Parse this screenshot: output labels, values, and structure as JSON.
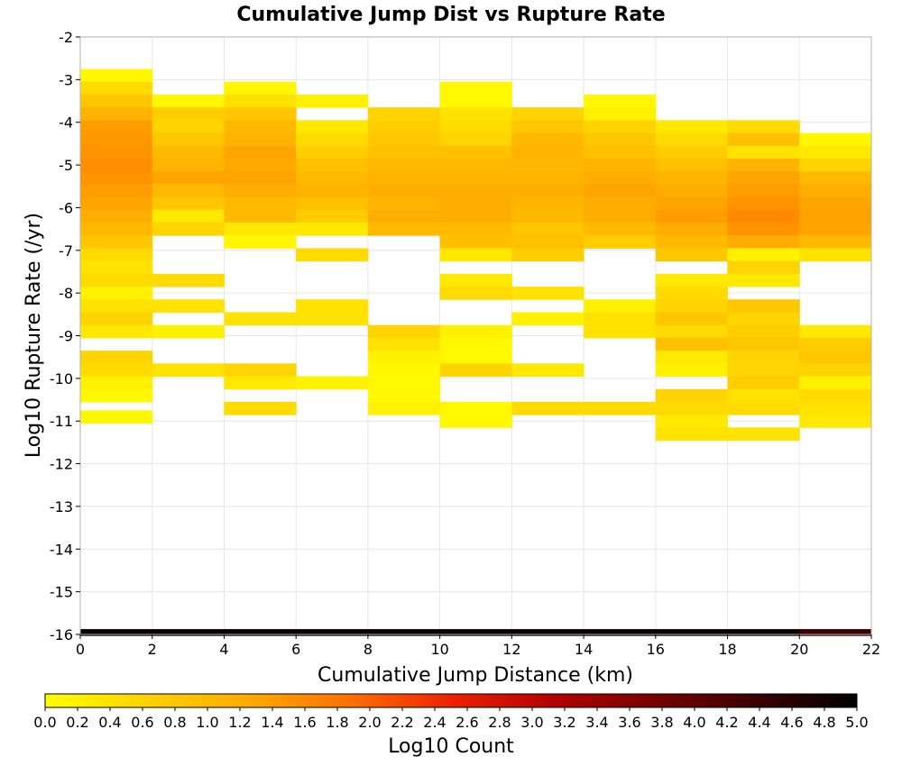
{
  "chart_data": {
    "type": "heatmap",
    "title": "Cumulative Jump Dist vs Rupture Rate",
    "xlabel": "Cumulative Jump Distance (km)",
    "ylabel": "Log10 Rupture Rate (/yr)",
    "xlim": [
      0,
      22
    ],
    "ylim": [
      -16,
      -2
    ],
    "x_ticks": [
      "0",
      "2",
      "4",
      "6",
      "8",
      "10",
      "12",
      "14",
      "16",
      "18",
      "20",
      "22"
    ],
    "y_ticks": [
      "-2",
      "-3",
      "-4",
      "-5",
      "-6",
      "-7",
      "-8",
      "-9",
      "-10",
      "-11",
      "-12",
      "-13",
      "-14",
      "-15",
      "-16"
    ],
    "x_bin_width": 2,
    "y_bin_height": 0.3,
    "grid": true,
    "colorbar": {
      "label": "Log10 Count",
      "min": 0.0,
      "max": 5.0,
      "ticks": [
        "0.0",
        "0.2",
        "0.4",
        "0.6",
        "0.8",
        "1.0",
        "1.2",
        "1.4",
        "1.6",
        "1.8",
        "2.0",
        "2.2",
        "2.4",
        "2.6",
        "2.8",
        "3.0",
        "3.2",
        "3.4",
        "3.6",
        "3.8",
        "4.0",
        "4.2",
        "4.4",
        "4.6",
        "4.8",
        "5.0"
      ],
      "colors": [
        "#ffff00",
        "#ffd200",
        "#ffaa00",
        "#ff7000",
        "#ee2200",
        "#b40000",
        "#780000",
        "#3c0000",
        "#000000"
      ]
    },
    "columns": [
      {
        "x": 0,
        "cells": [
          [
            -2.9,
            0.1
          ],
          [
            -3.2,
            0.5
          ],
          [
            -3.5,
            0.8
          ],
          [
            -3.8,
            1.1
          ],
          [
            -4.1,
            1.4
          ],
          [
            -4.4,
            1.45
          ],
          [
            -4.7,
            1.5
          ],
          [
            -5.0,
            1.55
          ],
          [
            -5.3,
            1.5
          ],
          [
            -5.6,
            1.4
          ],
          [
            -5.9,
            1.3
          ],
          [
            -6.2,
            1.2
          ],
          [
            -6.5,
            1.0
          ],
          [
            -6.8,
            0.8
          ],
          [
            -7.1,
            0.5
          ],
          [
            -7.4,
            0.4
          ],
          [
            -7.7,
            0.5
          ],
          [
            -8.0,
            0.2
          ],
          [
            -8.3,
            0.4
          ],
          [
            -8.6,
            0.6
          ],
          [
            -8.9,
            0.3
          ],
          [
            -9.5,
            0.6
          ],
          [
            -9.8,
            0.5
          ],
          [
            -10.1,
            0.2
          ],
          [
            -10.4,
            0.1
          ],
          [
            -10.9,
            0.1
          ],
          [
            -15.95,
            4.9
          ]
        ]
      },
      {
        "x": 2,
        "cells": [
          [
            -3.5,
            0.1
          ],
          [
            -3.8,
            0.7
          ],
          [
            -4.1,
            0.6
          ],
          [
            -4.4,
            0.8
          ],
          [
            -4.7,
            1.0
          ],
          [
            -5.0,
            1.1
          ],
          [
            -5.3,
            1.3
          ],
          [
            -5.6,
            1.0
          ],
          [
            -5.9,
            0.8
          ],
          [
            -6.2,
            0.3
          ],
          [
            -6.5,
            0.6
          ],
          [
            -7.7,
            0.5
          ],
          [
            -8.3,
            0.4
          ],
          [
            -8.9,
            0.2
          ],
          [
            -9.8,
            0.4
          ],
          [
            -15.95,
            4.9
          ]
        ]
      },
      {
        "x": 4,
        "cells": [
          [
            -3.2,
            0.1
          ],
          [
            -3.5,
            0.4
          ],
          [
            -3.8,
            0.8
          ],
          [
            -4.1,
            1.0
          ],
          [
            -4.4,
            1.1
          ],
          [
            -4.7,
            1.3
          ],
          [
            -5.0,
            1.25
          ],
          [
            -5.3,
            1.3
          ],
          [
            -5.6,
            1.2
          ],
          [
            -5.9,
            1.0
          ],
          [
            -6.2,
            1.0
          ],
          [
            -6.5,
            0.3
          ],
          [
            -6.8,
            0.1
          ],
          [
            -8.6,
            0.4
          ],
          [
            -9.8,
            0.6
          ],
          [
            -10.1,
            0.3
          ],
          [
            -10.7,
            0.5
          ],
          [
            -15.95,
            4.9
          ]
        ]
      },
      {
        "x": 6,
        "cells": [
          [
            -3.5,
            0.2
          ],
          [
            -4.1,
            0.3
          ],
          [
            -4.4,
            0.5
          ],
          [
            -4.7,
            0.7
          ],
          [
            -5.0,
            0.9
          ],
          [
            -5.3,
            1.0
          ],
          [
            -5.6,
            1.1
          ],
          [
            -5.9,
            0.9
          ],
          [
            -6.2,
            0.7
          ],
          [
            -6.5,
            0.3
          ],
          [
            -7.1,
            0.5
          ],
          [
            -8.3,
            0.4
          ],
          [
            -8.6,
            0.4
          ],
          [
            -10.1,
            0.2
          ],
          [
            -15.95,
            4.9
          ]
        ]
      },
      {
        "x": 8,
        "cells": [
          [
            -3.8,
            0.6
          ],
          [
            -4.1,
            0.7
          ],
          [
            -4.4,
            0.8
          ],
          [
            -4.7,
            0.9
          ],
          [
            -5.0,
            1.0
          ],
          [
            -5.3,
            1.1
          ],
          [
            -5.6,
            1.2
          ],
          [
            -5.9,
            1.1
          ],
          [
            -6.2,
            1.2
          ],
          [
            -6.5,
            1.0
          ],
          [
            -8.9,
            0.6
          ],
          [
            -9.2,
            0.4
          ],
          [
            -9.5,
            0.2
          ],
          [
            -9.8,
            0.1
          ],
          [
            -10.1,
            0.1
          ],
          [
            -10.4,
            0.1
          ],
          [
            -10.7,
            0.2
          ],
          [
            -15.95,
            4.9
          ]
        ]
      },
      {
        "x": 10,
        "cells": [
          [
            -3.2,
            0.1
          ],
          [
            -3.5,
            0.1
          ],
          [
            -3.8,
            0.4
          ],
          [
            -4.1,
            0.5
          ],
          [
            -4.4,
            0.6
          ],
          [
            -4.7,
            0.9
          ],
          [
            -5.0,
            1.0
          ],
          [
            -5.3,
            1.1
          ],
          [
            -5.6,
            1.2
          ],
          [
            -5.9,
            1.2
          ],
          [
            -6.2,
            1.2
          ],
          [
            -6.5,
            1.0
          ],
          [
            -6.8,
            0.9
          ],
          [
            -7.1,
            0.3
          ],
          [
            -7.7,
            0.3
          ],
          [
            -8.0,
            0.5
          ],
          [
            -8.9,
            0.2
          ],
          [
            -9.2,
            0.1
          ],
          [
            -9.5,
            0.1
          ],
          [
            -9.8,
            0.6
          ],
          [
            -10.7,
            0.1
          ],
          [
            -11.0,
            0.1
          ],
          [
            -15.95,
            4.9
          ]
        ]
      },
      {
        "x": 12,
        "cells": [
          [
            -3.8,
            0.6
          ],
          [
            -4.1,
            0.8
          ],
          [
            -4.4,
            1.0
          ],
          [
            -4.7,
            1.1
          ],
          [
            -5.0,
            1.05
          ],
          [
            -5.3,
            1.1
          ],
          [
            -5.6,
            1.2
          ],
          [
            -5.9,
            1.1
          ],
          [
            -6.2,
            1.0
          ],
          [
            -6.5,
            0.8
          ],
          [
            -6.8,
            0.9
          ],
          [
            -7.1,
            0.7
          ],
          [
            -8.0,
            0.4
          ],
          [
            -8.6,
            0.2
          ],
          [
            -9.8,
            0.3
          ],
          [
            -10.7,
            0.5
          ],
          [
            -15.95,
            4.9
          ]
        ]
      },
      {
        "x": 14,
        "cells": [
          [
            -3.5,
            0.1
          ],
          [
            -3.8,
            0.2
          ],
          [
            -4.1,
            0.6
          ],
          [
            -4.4,
            0.8
          ],
          [
            -4.7,
            0.9
          ],
          [
            -5.0,
            1.1
          ],
          [
            -5.3,
            1.2
          ],
          [
            -5.6,
            1.3
          ],
          [
            -5.9,
            1.2
          ],
          [
            -6.2,
            1.2
          ],
          [
            -6.5,
            1.0
          ],
          [
            -6.8,
            0.7
          ],
          [
            -8.3,
            0.2
          ],
          [
            -8.6,
            0.4
          ],
          [
            -8.9,
            0.4
          ],
          [
            -10.7,
            0.5
          ],
          [
            -15.95,
            4.9
          ]
        ]
      },
      {
        "x": 16,
        "cells": [
          [
            -4.1,
            0.3
          ],
          [
            -4.4,
            0.5
          ],
          [
            -4.7,
            0.7
          ],
          [
            -5.0,
            0.9
          ],
          [
            -5.3,
            1.1
          ],
          [
            -5.6,
            1.2
          ],
          [
            -5.9,
            1.3
          ],
          [
            -6.2,
            1.4
          ],
          [
            -6.5,
            1.2
          ],
          [
            -6.8,
            1.0
          ],
          [
            -7.1,
            0.8
          ],
          [
            -7.7,
            0.3
          ],
          [
            -8.0,
            0.5
          ],
          [
            -8.3,
            0.6
          ],
          [
            -8.6,
            0.8
          ],
          [
            -8.9,
            0.5
          ],
          [
            -9.2,
            0.9
          ],
          [
            -9.5,
            0.3
          ],
          [
            -9.8,
            0.2
          ],
          [
            -10.4,
            0.6
          ],
          [
            -10.7,
            0.5
          ],
          [
            -11.0,
            0.3
          ],
          [
            -11.3,
            0.4
          ],
          [
            -15.95,
            4.9
          ]
        ]
      },
      {
        "x": 18,
        "cells": [
          [
            -4.1,
            0.5
          ],
          [
            -4.4,
            0.9
          ],
          [
            -4.7,
            0.4
          ],
          [
            -5.0,
            1.1
          ],
          [
            -5.3,
            1.3
          ],
          [
            -5.6,
            1.4
          ],
          [
            -5.9,
            1.5
          ],
          [
            -6.2,
            1.6
          ],
          [
            -6.5,
            1.5
          ],
          [
            -6.8,
            1.2
          ],
          [
            -7.1,
            0.2
          ],
          [
            -7.4,
            0.6
          ],
          [
            -7.7,
            0.3
          ],
          [
            -8.3,
            0.8
          ],
          [
            -8.6,
            0.6
          ],
          [
            -8.9,
            0.7
          ],
          [
            -9.2,
            0.8
          ],
          [
            -9.5,
            0.6
          ],
          [
            -9.8,
            0.6
          ],
          [
            -10.1,
            0.7
          ],
          [
            -10.4,
            0.4
          ],
          [
            -10.7,
            0.5
          ],
          [
            -11.3,
            0.4
          ],
          [
            -15.95,
            4.9
          ]
        ]
      },
      {
        "x": 20,
        "cells": [
          [
            -4.4,
            0.1
          ],
          [
            -4.7,
            0.3
          ],
          [
            -5.0,
            0.6
          ],
          [
            -5.3,
            1.0
          ],
          [
            -5.6,
            1.2
          ],
          [
            -5.9,
            1.3
          ],
          [
            -6.2,
            1.35
          ],
          [
            -6.5,
            1.3
          ],
          [
            -6.8,
            1.0
          ],
          [
            -7.1,
            0.4
          ],
          [
            -8.9,
            0.3
          ],
          [
            -9.2,
            0.7
          ],
          [
            -9.5,
            0.8
          ],
          [
            -9.8,
            0.6
          ],
          [
            -10.1,
            0.2
          ],
          [
            -10.4,
            0.5
          ],
          [
            -10.7,
            0.4
          ],
          [
            -11.0,
            0.3
          ],
          [
            -15.95,
            4.4
          ]
        ]
      }
    ]
  }
}
